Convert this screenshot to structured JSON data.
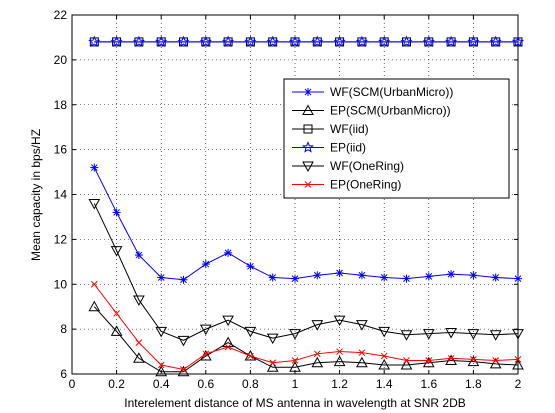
{
  "chart_data": {
    "type": "line",
    "title": "",
    "xlabel": "Interelement distance of MS antenna in wavelength at SNR 2DB",
    "ylabel": "Mean capacity in bps/HZ",
    "xlim": [
      0,
      2
    ],
    "ylim": [
      6,
      22
    ],
    "xticks": [
      "0",
      "0.2",
      "0.4",
      "0.6",
      "0.8",
      "1",
      "1.2",
      "1.4",
      "1.6",
      "1.8",
      "2"
    ],
    "yticks": [
      "6",
      "8",
      "10",
      "12",
      "14",
      "16",
      "18",
      "20",
      "22"
    ],
    "grid": "dotted",
    "legend_position": "right",
    "x": [
      0.1,
      0.2,
      0.3,
      0.4,
      0.5,
      0.6,
      0.7,
      0.8,
      0.9,
      1.0,
      1.1,
      1.2,
      1.3,
      1.4,
      1.5,
      1.6,
      1.7,
      1.8,
      1.9,
      2.0
    ],
    "series": [
      {
        "name": "WF(SCM(UrbanMicro))",
        "color": "#0000ff",
        "marker": "asterisk",
        "values": [
          15.2,
          13.2,
          11.3,
          10.3,
          10.2,
          10.9,
          11.4,
          10.8,
          10.3,
          10.25,
          10.4,
          10.5,
          10.4,
          10.3,
          10.25,
          10.35,
          10.45,
          10.4,
          10.3,
          10.25
        ]
      },
      {
        "name": "EP(SCM(UrbanMicro))",
        "color": "#000000",
        "marker": "triangle-up",
        "values": [
          9.0,
          7.9,
          6.7,
          6.1,
          6.1,
          6.8,
          7.4,
          6.8,
          6.3,
          6.3,
          6.5,
          6.55,
          6.5,
          6.4,
          6.4,
          6.5,
          6.6,
          6.55,
          6.45,
          6.4
        ]
      },
      {
        "name": "WF(iid)",
        "color": "#000000",
        "marker": "square",
        "values": [
          20.8,
          20.8,
          20.8,
          20.8,
          20.8,
          20.8,
          20.8,
          20.8,
          20.8,
          20.8,
          20.8,
          20.8,
          20.8,
          20.8,
          20.8,
          20.8,
          20.8,
          20.8,
          20.8,
          20.8
        ]
      },
      {
        "name": "EP(iid)",
        "color": "#0000ff",
        "marker": "star",
        "values": [
          20.8,
          20.8,
          20.8,
          20.8,
          20.8,
          20.8,
          20.8,
          20.8,
          20.8,
          20.8,
          20.8,
          20.8,
          20.8,
          20.8,
          20.8,
          20.8,
          20.8,
          20.8,
          20.8,
          20.8
        ]
      },
      {
        "name": "WF(OneRing)",
        "color": "#000000",
        "marker": "triangle-down",
        "values": [
          13.6,
          11.5,
          9.3,
          7.9,
          7.5,
          8.0,
          8.4,
          7.9,
          7.6,
          7.8,
          8.2,
          8.4,
          8.2,
          7.9,
          7.75,
          7.8,
          7.85,
          7.8,
          7.75,
          7.8
        ]
      },
      {
        "name": "EP(OneRing)",
        "color": "#ff0000",
        "marker": "x",
        "values": [
          10.0,
          8.7,
          7.4,
          6.4,
          6.2,
          6.9,
          7.2,
          6.8,
          6.5,
          6.6,
          6.9,
          7.0,
          6.95,
          6.8,
          6.6,
          6.6,
          6.7,
          6.65,
          6.6,
          6.65
        ]
      }
    ]
  }
}
